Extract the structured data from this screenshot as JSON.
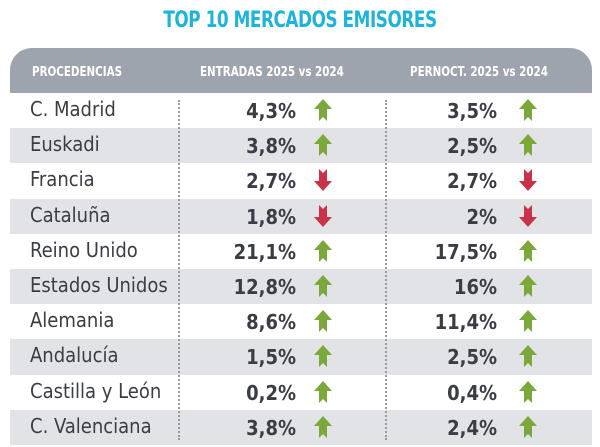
{
  "title": "TOP 10 MERCADOS EMISORES",
  "headers": [
    "PROCEDENCIAS",
    "ENTRADAS 2025 vs 2024",
    "PERNOCT. 2025 vs 2024"
  ],
  "colors": {
    "title": "#1db3dc",
    "header": "#9ea4ad",
    "up": "#7aa83a",
    "down": "#c8334a",
    "alt_row": "#e1e3e6"
  },
  "rows": [
    {
      "name": "C. Madrid",
      "entradas": "4,3%",
      "entradas_trend": "up",
      "pernoct": "3,5%",
      "pernoct_trend": "up"
    },
    {
      "name": "Euskadi",
      "entradas": "3,8%",
      "entradas_trend": "up",
      "pernoct": "2,5%",
      "pernoct_trend": "up"
    },
    {
      "name": "Francia",
      "entradas": "2,7%",
      "entradas_trend": "down",
      "pernoct": "2,7%",
      "pernoct_trend": "down"
    },
    {
      "name": "Cataluña",
      "entradas": "1,8%",
      "entradas_trend": "down",
      "pernoct": "2%",
      "pernoct_trend": "down"
    },
    {
      "name": "Reino Unido",
      "entradas": "21,1%",
      "entradas_trend": "up",
      "pernoct": "17,5%",
      "pernoct_trend": "up"
    },
    {
      "name": "Estados Unidos",
      "entradas": "12,8%",
      "entradas_trend": "up",
      "pernoct": "16%",
      "pernoct_trend": "up"
    },
    {
      "name": "Alemania",
      "entradas": "8,6%",
      "entradas_trend": "up",
      "pernoct": "11,4%",
      "pernoct_trend": "up"
    },
    {
      "name": "Andalucía",
      "entradas": "1,5%",
      "entradas_trend": "up",
      "pernoct": "2,5%",
      "pernoct_trend": "up"
    },
    {
      "name": "Castilla y León",
      "entradas": "0,2%",
      "entradas_trend": "up",
      "pernoct": "0,4%",
      "pernoct_trend": "up"
    },
    {
      "name": "C. Valenciana",
      "entradas": "3,8%",
      "entradas_trend": "up",
      "pernoct": "2,4%",
      "pernoct_trend": "up"
    }
  ]
}
